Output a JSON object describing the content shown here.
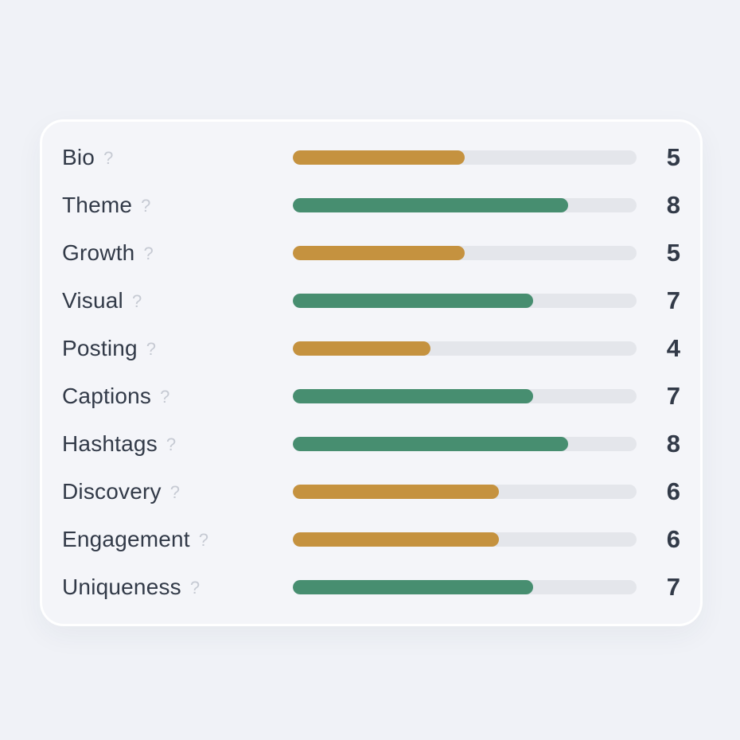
{
  "colors": {
    "page_background": "#f0f2f7",
    "card_background": "#f4f5f9",
    "card_border": "#ffffff",
    "bar_track": "#e4e6eb",
    "bar_green": "#478e70",
    "bar_orange": "#c5923f",
    "label_text": "#323a48",
    "score_text": "#323a48",
    "help_icon": "#c6cad3"
  },
  "help_icon_glyph": "?",
  "chart_data": {
    "type": "bar",
    "orientation": "horizontal",
    "title": "",
    "categories": [
      "Bio",
      "Theme",
      "Growth",
      "Visual",
      "Posting",
      "Captions",
      "Hashtags",
      "Discovery",
      "Engagement",
      "Uniqueness"
    ],
    "values": [
      5,
      8,
      5,
      7,
      4,
      7,
      8,
      6,
      6,
      7
    ],
    "value_range": [
      0,
      10
    ],
    "bar_colors": [
      "orange",
      "green",
      "orange",
      "green",
      "orange",
      "green",
      "green",
      "orange",
      "orange",
      "green"
    ],
    "value_labels_position": "right",
    "grid": false,
    "legend": "none"
  },
  "rows": [
    {
      "label": "Bio",
      "score": "5",
      "color": "orange",
      "percent": 50
    },
    {
      "label": "Theme",
      "score": "8",
      "color": "green",
      "percent": 80
    },
    {
      "label": "Growth",
      "score": "5",
      "color": "orange",
      "percent": 50
    },
    {
      "label": "Visual",
      "score": "7",
      "color": "green",
      "percent": 70
    },
    {
      "label": "Posting",
      "score": "4",
      "color": "orange",
      "percent": 40
    },
    {
      "label": "Captions",
      "score": "7",
      "color": "green",
      "percent": 70
    },
    {
      "label": "Hashtags",
      "score": "8",
      "color": "green",
      "percent": 80
    },
    {
      "label": "Discovery",
      "score": "6",
      "color": "orange",
      "percent": 60
    },
    {
      "label": "Engagement",
      "score": "6",
      "color": "orange",
      "percent": 60
    },
    {
      "label": "Uniqueness",
      "score": "7",
      "color": "green",
      "percent": 70
    }
  ]
}
